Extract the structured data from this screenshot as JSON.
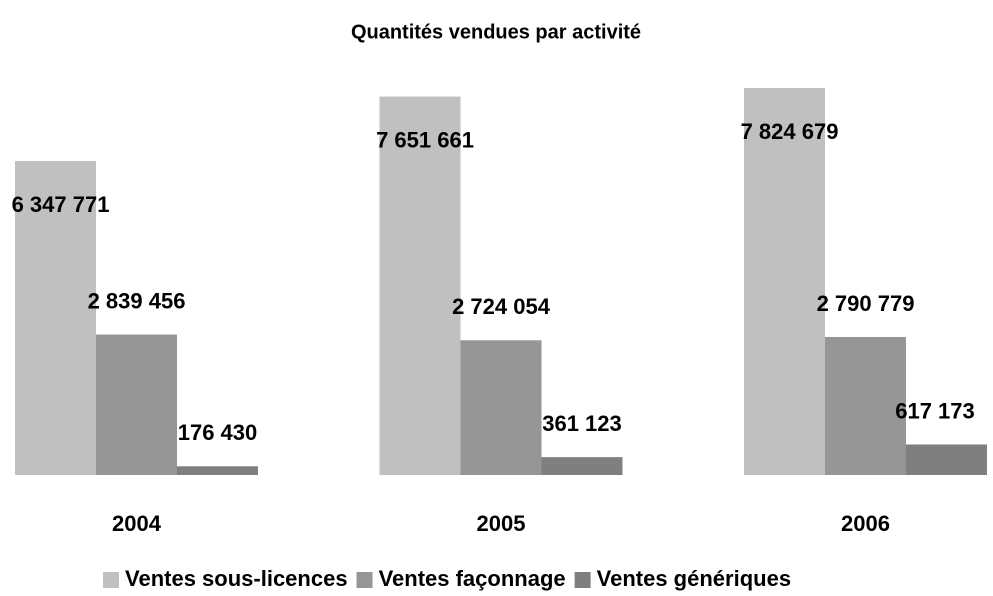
{
  "chart_data": {
    "type": "bar",
    "title": "Quantités vendues par activité",
    "categories": [
      "2004",
      "2005",
      "2006"
    ],
    "series": [
      {
        "name": "Ventes sous-licences",
        "color": "#c0c0c0",
        "values": [
          6347771,
          7651661,
          7824679
        ],
        "value_labels": [
          "6 347 771",
          "7 651 661",
          "7 824 679"
        ]
      },
      {
        "name": "Ventes façonnage",
        "color": "#969696",
        "values": [
          2839456,
          2724054,
          2790779
        ],
        "value_labels": [
          "2 839 456",
          "2 724 054",
          "2 790 779"
        ]
      },
      {
        "name": "Ventes génériques",
        "color": "#7f7f7f",
        "values": [
          176430,
          361123,
          617173
        ],
        "value_labels": [
          "176 430",
          "361 123",
          "617 173"
        ]
      }
    ]
  }
}
